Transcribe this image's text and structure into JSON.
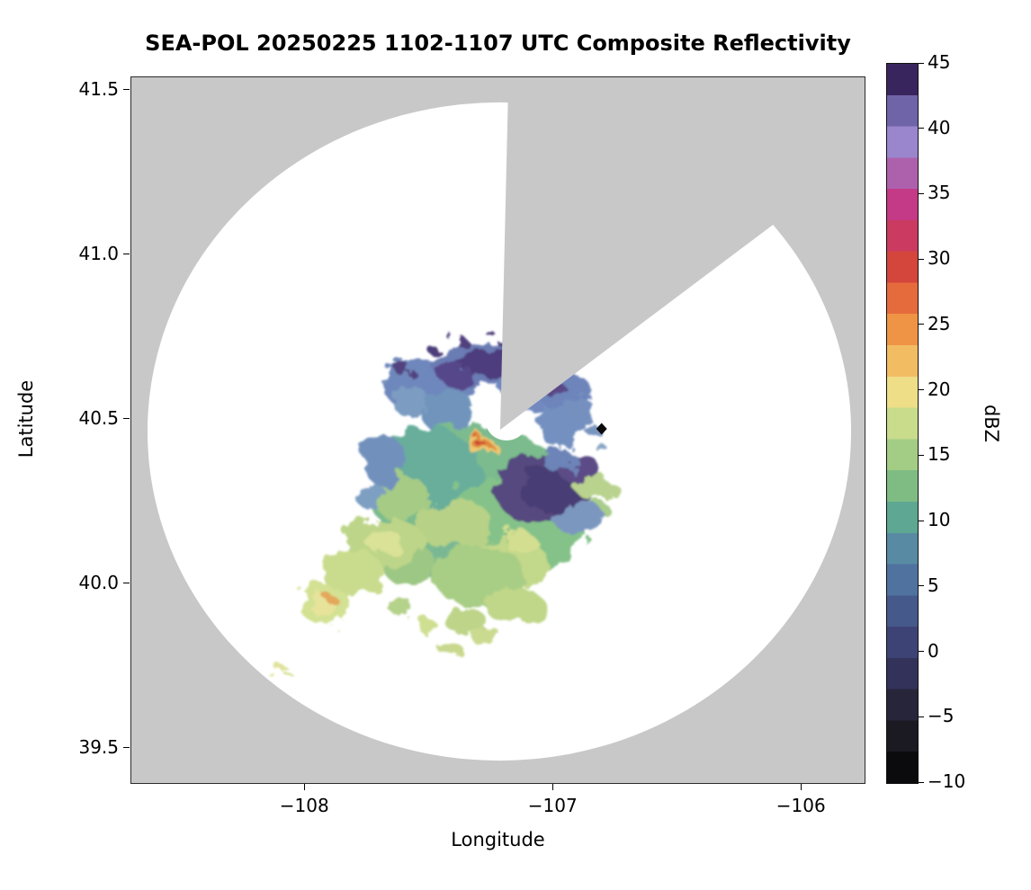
{
  "chart_data": {
    "type": "heatmap",
    "title": "SEA-POL 20250225 1102-1107 UTC Composite Reflectivity",
    "xlabel": "Longitude",
    "ylabel": "Latitude",
    "x_axis": {
      "min": -108.7,
      "max": -105.74,
      "ticks": [
        -108,
        -107,
        -106
      ],
      "tick_labels": [
        "−108",
        "−107",
        "−106"
      ]
    },
    "y_axis": {
      "min": 39.39,
      "max": 41.54,
      "ticks": [
        39.5,
        40.0,
        40.5,
        41.0,
        41.5
      ],
      "tick_labels": [
        "39.5",
        "40.0",
        "40.5",
        "41.0",
        "41.5"
      ]
    },
    "colorbar": {
      "label": "dBZ",
      "min": -10,
      "max": 45,
      "step": 2.5,
      "ticks": [
        -10,
        -5,
        0,
        5,
        10,
        15,
        20,
        25,
        30,
        35,
        40,
        45
      ],
      "tick_labels": [
        "−10",
        "−5",
        "0",
        "5",
        "10",
        "15",
        "20",
        "25",
        "30",
        "35",
        "40",
        "45"
      ],
      "colors": [
        "#0b0b0d",
        "#1b1a22",
        "#26253a",
        "#32325a",
        "#3d4475",
        "#46598b",
        "#4f729f",
        "#588ba3",
        "#5ea792",
        "#7fbc84",
        "#a3cd85",
        "#c8dc8c",
        "#eede88",
        "#f2bc63",
        "#ef9445",
        "#e66b3c",
        "#d4453c",
        "#cb3a60",
        "#c43a86",
        "#ad61ad",
        "#9a86cd",
        "#6f64a8",
        "#39255e"
      ]
    },
    "background_color": "#c8c8c8",
    "coverage": {
      "shape": "circle",
      "fill": "#ffffff",
      "center_lon": -107.16,
      "center_lat": 40.51,
      "blocked_sector_azimuth_deg": [
        1,
        53
      ],
      "blocked_sector_fill": "#c8c8c8"
    },
    "marker": {
      "shape": "black-diamond",
      "lon": -106.8,
      "lat": 40.47
    },
    "echo_summary": [
      {
        "region": "northern arc",
        "lon": -107.2,
        "lat": 40.6,
        "dbz": "0 to 8, blue with dark-purple cores"
      },
      {
        "region": "east patch",
        "lon": -106.95,
        "lat": 40.25,
        "dbz": "-2 to 3, dark slate purple"
      },
      {
        "region": "central mass",
        "lon": -107.35,
        "lat": 40.2,
        "dbz": "8 to 15, green and teal"
      },
      {
        "region": "southwest arm",
        "lon": -107.95,
        "lat": 39.9,
        "dbz": "12 to 18, yellow-green"
      },
      {
        "region": "hot spot",
        "lon": -107.3,
        "lat": 40.42,
        "dbz": "25 to 30, orange-red core"
      },
      {
        "region": "isolated specks southwest",
        "lon": -108.1,
        "lat": 39.67,
        "dbz": "15 to 18, tiny yellow dots"
      }
    ]
  }
}
